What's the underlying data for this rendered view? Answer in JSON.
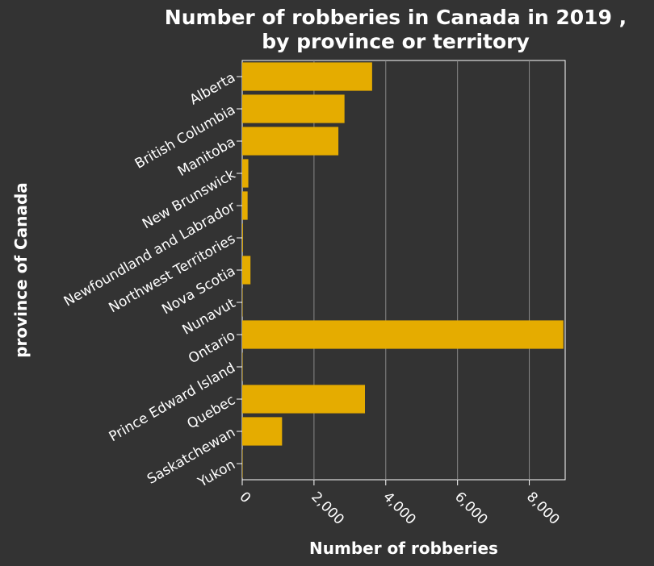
{
  "chart_data": {
    "type": "bar",
    "orientation": "horizontal",
    "title": "Number of robberies in Canada in 2019 , by province or territory",
    "title_lines": [
      "Number of robberies in Canada in 2019 ,",
      "by province or territory"
    ],
    "xlabel": "Number of robberies",
    "ylabel": "province of Canada",
    "categories": [
      "Alberta",
      "British Columbia",
      "Manitoba",
      "New Brunswick",
      "Newfoundland and Labrador",
      "Northwest Territories",
      "Nova Scotia",
      "Nunavut",
      "Ontario",
      "Prince Edward Island",
      "Quebec",
      "Saskatchewan",
      "Yukon"
    ],
    "values": [
      3620,
      2850,
      2680,
      170,
      150,
      20,
      230,
      10,
      8950,
      10,
      3420,
      1110,
      10
    ],
    "xlim": [
      0,
      9000
    ],
    "xticks": [
      0,
      2000,
      4000,
      6000,
      8000
    ],
    "xtick_labels": [
      "0",
      "2,000",
      "4,000",
      "6,000",
      "8,000"
    ],
    "grid": "vertical",
    "legend": "none",
    "colors": {
      "bar": "#e5ac00",
      "background": "#333333",
      "plot_background": "#333333",
      "grid": "#888888",
      "text": "#ffffff"
    }
  }
}
